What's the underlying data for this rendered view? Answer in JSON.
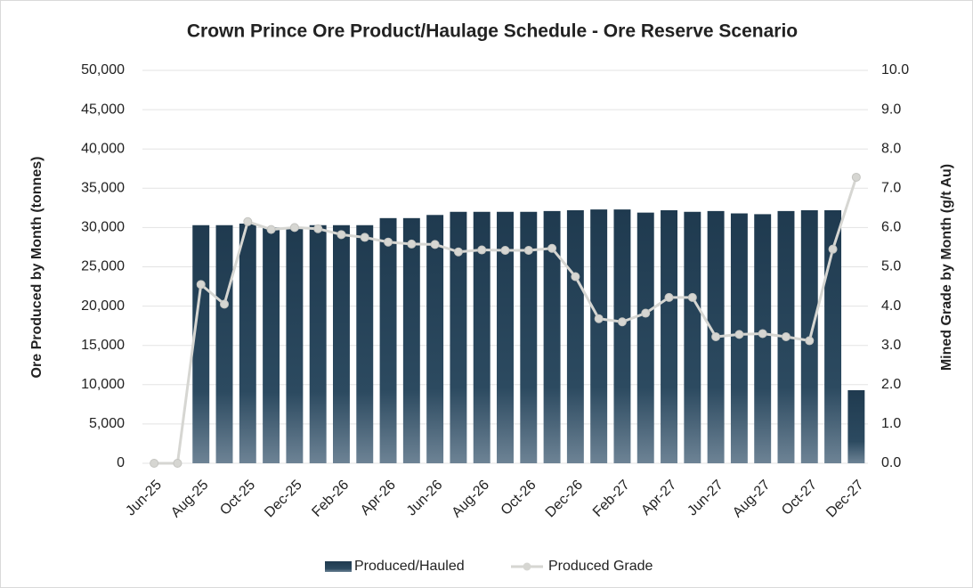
{
  "chart_data": {
    "type": "bar_line",
    "title": "Crown Prince Ore Product/Haulage Schedule - Ore Reserve Scenario",
    "ylabel": "Ore Produced by Month (tonnes)",
    "y2label": "Mined Grade by Month (g/t Au)",
    "categories": [
      "Jun-25",
      null,
      "Aug-25",
      null,
      "Oct-25",
      null,
      "Dec-25",
      null,
      "Feb-26",
      null,
      "Apr-26",
      null,
      "Jun-26",
      null,
      "Aug-26",
      null,
      "Oct-26",
      null,
      "Dec-26",
      null,
      "Feb-27",
      null,
      "Apr-27",
      null,
      "Jun-27",
      null,
      "Aug-27",
      null,
      "Oct-27",
      null,
      "Dec-27"
    ],
    "series": [
      {
        "name": "Produced/Hauled",
        "color": "#1f3a4f",
        "axis": "y",
        "values": [
          0,
          0,
          30300,
          30300,
          30500,
          30000,
          30000,
          30300,
          30300,
          30300,
          31200,
          31200,
          31600,
          32000,
          32000,
          32000,
          32000,
          32100,
          32200,
          32300,
          32300,
          31900,
          32200,
          32000,
          32100,
          31800,
          31700,
          32100,
          32200,
          32200,
          9300
        ]
      },
      {
        "name": "Produced Grade",
        "color": "#d6d6d2",
        "axis": "y2",
        "values": [
          0,
          0,
          4.55,
          4.05,
          6.15,
          5.95,
          6.0,
          5.97,
          5.82,
          5.75,
          5.63,
          5.58,
          5.57,
          5.38,
          5.43,
          5.42,
          5.42,
          5.47,
          4.75,
          3.68,
          3.6,
          3.82,
          4.22,
          4.22,
          3.22,
          3.28,
          3.3,
          3.22,
          3.12,
          5.45,
          7.28
        ]
      }
    ],
    "ylim": [
      0,
      50000
    ],
    "yticks": [
      0,
      {
        "value": 5000,
        "label": "5,000"
      },
      {
        "value": 10000,
        "label": "10,000"
      },
      {
        "value": 15000,
        "label": "15,000"
      },
      {
        "value": 20000,
        "label": "20,000"
      },
      {
        "value": 25000,
        "label": "25,000"
      },
      {
        "value": 30000,
        "label": "30,000"
      },
      {
        "value": 35000,
        "label": "35,000"
      },
      {
        "value": 40000,
        "label": "40,000"
      },
      {
        "value": 45000,
        "label": "45,000"
      },
      {
        "value": 50000,
        "label": "50,000"
      }
    ],
    "y2lim": [
      0,
      10
    ],
    "y2ticks": [
      {
        "value": 0,
        "label": "0.0"
      },
      {
        "value": 1,
        "label": "1.0"
      },
      {
        "value": 2,
        "label": "2.0"
      },
      {
        "value": 3,
        "label": "3.0"
      },
      {
        "value": 4,
        "label": "4.0"
      },
      {
        "value": 5,
        "label": "5.0"
      },
      {
        "value": 6,
        "label": "6.0"
      },
      {
        "value": 7,
        "label": "7.0"
      },
      {
        "value": 8,
        "label": "8.0"
      },
      {
        "value": 9,
        "label": "9.0"
      },
      {
        "value": 10,
        "label": "10.0"
      }
    ],
    "grid": true,
    "legend": "bottom"
  }
}
